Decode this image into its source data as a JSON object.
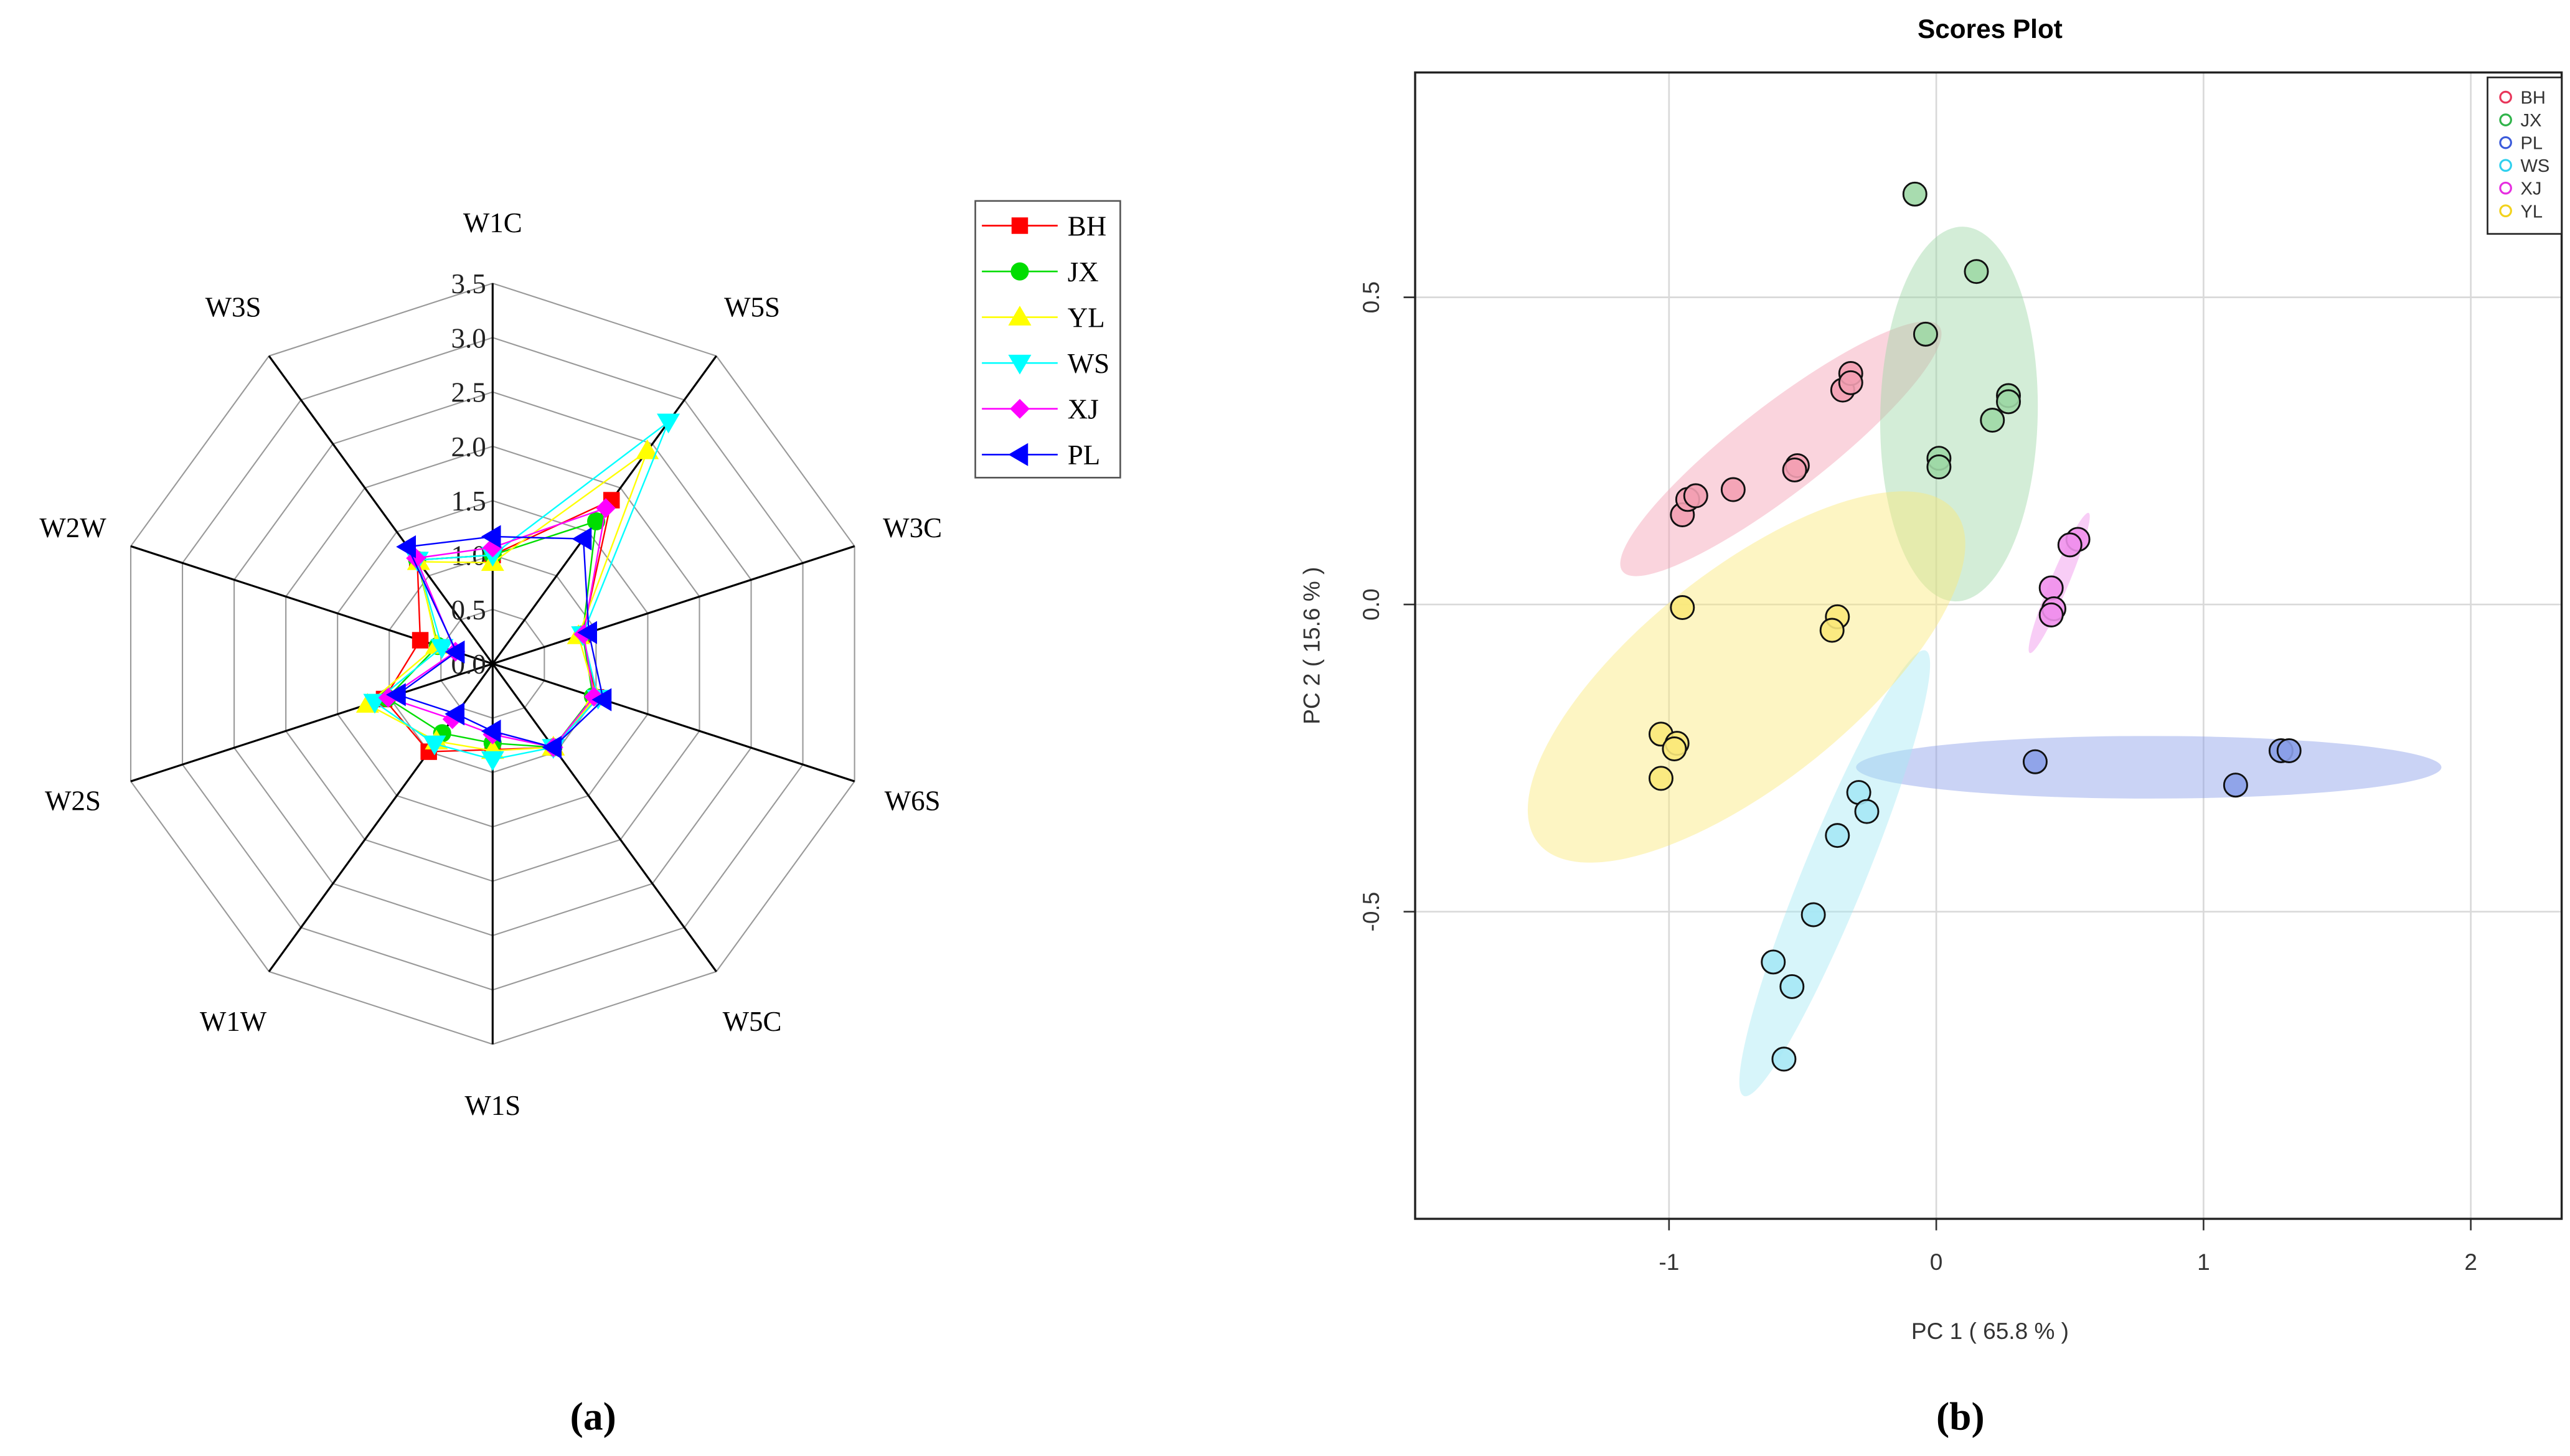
{
  "captions": {
    "a": "(a)",
    "b": "(b)"
  },
  "chart_data": [
    {
      "type": "radar",
      "axes": [
        "W1C",
        "W5S",
        "W3C",
        "W6S",
        "W5C",
        "W1S",
        "W1W",
        "W2S",
        "W2W",
        "W3S"
      ],
      "rlim": [
        0,
        3.5
      ],
      "ticks": [
        "0.0",
        "0.5",
        "1.0",
        "1.5",
        "2.0",
        "2.5",
        "3.0",
        "3.5"
      ],
      "legend_position": "top-right",
      "series": [
        {
          "name": "BH",
          "color": "#ff0000",
          "marker": "square",
          "values": [
            1.0,
            1.86,
            0.87,
            1.0,
            0.95,
            0.79,
            1.0,
            1.05,
            0.7,
            1.18
          ]
        },
        {
          "name": "JX",
          "color": "#00dd00",
          "marker": "circle",
          "values": [
            1.0,
            1.62,
            0.87,
            0.97,
            0.95,
            0.73,
            0.79,
            1.02,
            0.53,
            1.18
          ]
        },
        {
          "name": "YL",
          "color": "#ffff00",
          "marker": "triangle-up",
          "values": [
            0.93,
            2.42,
            0.83,
            1.0,
            0.95,
            0.8,
            0.88,
            1.21,
            0.54,
            1.16
          ]
        },
        {
          "name": "WS",
          "color": "#00ffff",
          "marker": "triangle-down",
          "values": [
            1.0,
            2.75,
            0.87,
            1.02,
            0.95,
            0.88,
            0.91,
            1.14,
            0.49,
            1.18
          ]
        },
        {
          "name": "XJ",
          "color": "#ff00ff",
          "marker": "diamond",
          "values": [
            1.07,
            1.77,
            0.88,
            0.98,
            0.95,
            0.65,
            0.63,
            1.01,
            0.36,
            1.2
          ]
        },
        {
          "name": "PL",
          "color": "#0000ff",
          "marker": "triangle-left",
          "values": [
            1.17,
            1.42,
            0.93,
            1.07,
            0.95,
            0.62,
            0.57,
            0.92,
            0.35,
            1.33
          ]
        }
      ]
    },
    {
      "type": "scatter",
      "title": "Scores Plot",
      "xlabel": "PC 1 ( 65.8 % )",
      "ylabel": "PC 2 ( 15.6 % )",
      "xlim": [
        -1.95,
        2.34
      ],
      "ylim": [
        -1.0,
        0.866
      ],
      "xticks": [
        -1,
        0,
        1,
        2
      ],
      "yticks": [
        -0.5,
        0.0,
        0.5
      ],
      "xtick_labels": [
        "-1",
        "0",
        "1",
        "2"
      ],
      "ytick_labels": [
        "-0.5",
        "0.0",
        "0.5"
      ],
      "grid": true,
      "legend_position": "top-right",
      "series": [
        {
          "name": "BH",
          "color": "#e8365a",
          "fill": "#f3a0b3",
          "points": [
            [
              -0.95,
              0.146
            ],
            [
              -0.93,
              0.171
            ],
            [
              -0.9,
              0.177
            ],
            [
              -0.76,
              0.187
            ],
            [
              -0.52,
              0.226
            ],
            [
              -0.53,
              0.219
            ],
            [
              -0.35,
              0.349
            ],
            [
              -0.32,
              0.376
            ],
            [
              -0.32,
              0.361
            ]
          ],
          "ellipse": {
            "from": [
              -1.174,
              0.054
            ],
            "to": [
              0.011,
              0.453
            ],
            "ratio": 0.22
          }
        },
        {
          "name": "JX",
          "color": "#2fb34a",
          "fill": "#9ed8a6",
          "points": [
            [
              -0.08,
              0.668
            ],
            [
              0.15,
              0.542
            ],
            [
              -0.04,
              0.44
            ],
            [
              0.27,
              0.34
            ],
            [
              0.27,
              0.33
            ],
            [
              0.21,
              0.3
            ],
            [
              0.01,
              0.238
            ],
            [
              0.01,
              0.224
            ]
          ],
          "ellipse": {
            "from": [
              0.1,
              0.615
            ],
            "to": [
              0.07,
              0.005
            ],
            "ratio": 0.42
          }
        },
        {
          "name": "PL",
          "color": "#3b5bdb",
          "fill": "#8a9ee8",
          "points": [
            [
              0.37,
              -0.256
            ],
            [
              1.12,
              -0.294
            ],
            [
              1.29,
              -0.238
            ],
            [
              1.32,
              -0.238
            ]
          ],
          "ellipse": {
            "from": [
              -0.3,
              -0.265
            ],
            "to": [
              1.89,
              -0.265
            ],
            "ratio": 0.107
          }
        },
        {
          "name": "WS",
          "color": "#2fd0ee",
          "fill": "#a6e8f5",
          "points": [
            [
              -0.29,
              -0.306
            ],
            [
              -0.26,
              -0.337
            ],
            [
              -0.37,
              -0.376
            ],
            [
              -0.46,
              -0.505
            ],
            [
              -0.61,
              -0.582
            ],
            [
              -0.54,
              -0.622
            ],
            [
              -0.57,
              -0.74
            ]
          ],
          "ellipse": {
            "from": [
              -0.04,
              -0.075
            ],
            "to": [
              -0.72,
              -0.8
            ],
            "ratio": 0.13
          }
        },
        {
          "name": "XJ",
          "color": "#e62ee0",
          "fill": "#f090ec",
          "points": [
            [
              0.53,
              0.106
            ],
            [
              0.5,
              0.097
            ],
            [
              0.43,
              0.027
            ],
            [
              0.44,
              -0.007
            ],
            [
              0.43,
              -0.017
            ]
          ],
          "ellipse": {
            "from": [
              0.57,
              0.149
            ],
            "to": [
              0.35,
              -0.079
            ],
            "ratio": 0.12
          }
        },
        {
          "name": "YL",
          "color": "#f2d21c",
          "fill": "#fbe97a",
          "points": [
            [
              -0.95,
              -0.005
            ],
            [
              -0.37,
              -0.02
            ],
            [
              -0.39,
              -0.042
            ],
            [
              -1.03,
              -0.211
            ],
            [
              -0.97,
              -0.226
            ],
            [
              -0.98,
              -0.235
            ],
            [
              -1.03,
              -0.283
            ]
          ],
          "ellipse": {
            "from": [
              -1.49,
              -0.388
            ],
            "to": [
              0.07,
              0.152
            ],
            "ratio": 0.4
          }
        }
      ]
    }
  ]
}
